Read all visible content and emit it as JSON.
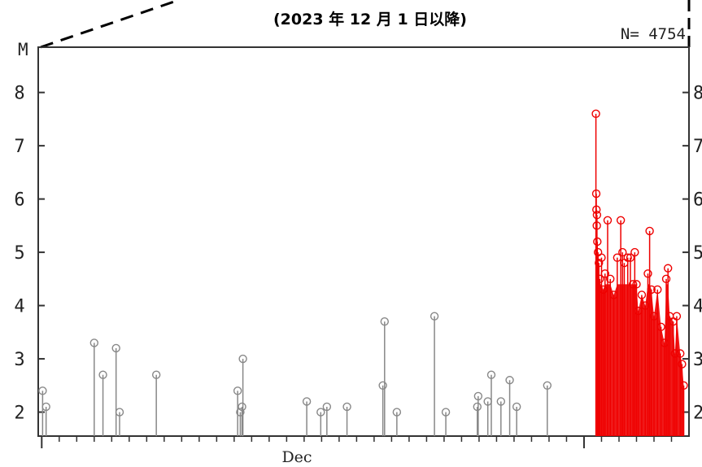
{
  "chart_data": {
    "type": "scatter",
    "title": "(2023 年 12 月 1 日以降)",
    "ylabel": "M",
    "count_label": "N= 4754",
    "ylim": [
      1.55,
      8.85
    ],
    "yticks": [
      "2",
      "3",
      "4",
      "5",
      "6",
      "7",
      "8"
    ],
    "month_label": "Dec",
    "x_unit": "days since 2023-12-01",
    "xlim": [
      -0.2,
      37
    ],
    "colors": {
      "before": "#888888",
      "after": "#ee0000"
    },
    "series": [
      {
        "points": [
          {
            "x": 0.05,
            "y": 2.4
          },
          {
            "x": 0.25,
            "y": 2.1
          },
          {
            "x": 3.0,
            "y": 3.3
          },
          {
            "x": 3.5,
            "y": 2.7
          },
          {
            "x": 4.25,
            "y": 3.2
          },
          {
            "x": 4.45,
            "y": 2.0
          },
          {
            "x": 6.55,
            "y": 2.7
          },
          {
            "x": 11.2,
            "y": 2.4
          },
          {
            "x": 11.35,
            "y": 2.0
          },
          {
            "x": 11.45,
            "y": 2.1
          },
          {
            "x": 11.5,
            "y": 3.0
          },
          {
            "x": 15.15,
            "y": 2.2
          },
          {
            "x": 15.95,
            "y": 2.0
          },
          {
            "x": 16.3,
            "y": 2.1
          },
          {
            "x": 17.45,
            "y": 2.1
          },
          {
            "x": 19.5,
            "y": 2.5
          },
          {
            "x": 19.6,
            "y": 3.7
          },
          {
            "x": 20.3,
            "y": 2.0
          },
          {
            "x": 22.45,
            "y": 3.8
          },
          {
            "x": 23.1,
            "y": 2.0
          },
          {
            "x": 24.9,
            "y": 2.1
          },
          {
            "x": 24.95,
            "y": 2.3
          },
          {
            "x": 25.5,
            "y": 2.2
          },
          {
            "x": 25.7,
            "y": 2.7
          },
          {
            "x": 26.25,
            "y": 2.2
          },
          {
            "x": 26.75,
            "y": 2.6
          },
          {
            "x": 27.15,
            "y": 2.1
          },
          {
            "x": 28.9,
            "y": 2.5
          }
        ]
      },
      {
        "points": [
          {
            "x": 31.68,
            "y": 7.6
          },
          {
            "x": 31.7,
            "y": 6.1
          },
          {
            "x": 31.71,
            "y": 5.8
          },
          {
            "x": 31.73,
            "y": 5.5
          },
          {
            "x": 31.74,
            "y": 5.7
          },
          {
            "x": 31.76,
            "y": 5.2
          },
          {
            "x": 31.8,
            "y": 5.0
          },
          {
            "x": 31.85,
            "y": 4.8
          },
          {
            "x": 31.9,
            "y": 4.5
          },
          {
            "x": 32.0,
            "y": 4.9
          },
          {
            "x": 32.1,
            "y": 4.3
          },
          {
            "x": 32.2,
            "y": 4.6
          },
          {
            "x": 32.35,
            "y": 5.6
          },
          {
            "x": 32.5,
            "y": 4.5
          },
          {
            "x": 32.7,
            "y": 4.2
          },
          {
            "x": 32.9,
            "y": 4.9
          },
          {
            "x": 33.1,
            "y": 5.6
          },
          {
            "x": 33.2,
            "y": 5.0
          },
          {
            "x": 33.3,
            "y": 4.8
          },
          {
            "x": 33.5,
            "y": 4.9
          },
          {
            "x": 33.65,
            "y": 4.9
          },
          {
            "x": 33.8,
            "y": 4.4
          },
          {
            "x": 33.9,
            "y": 5.0
          },
          {
            "x": 34.0,
            "y": 4.4
          },
          {
            "x": 34.1,
            "y": 3.9
          },
          {
            "x": 34.3,
            "y": 4.2
          },
          {
            "x": 34.5,
            "y": 4.0
          },
          {
            "x": 34.65,
            "y": 4.6
          },
          {
            "x": 34.75,
            "y": 5.4
          },
          {
            "x": 34.85,
            "y": 4.3
          },
          {
            "x": 35.0,
            "y": 3.8
          },
          {
            "x": 35.2,
            "y": 4.3
          },
          {
            "x": 35.4,
            "y": 3.6
          },
          {
            "x": 35.6,
            "y": 3.3
          },
          {
            "x": 35.7,
            "y": 4.5
          },
          {
            "x": 35.8,
            "y": 4.7
          },
          {
            "x": 35.9,
            "y": 3.8
          },
          {
            "x": 36.1,
            "y": 3.7
          },
          {
            "x": 36.2,
            "y": 3.1
          },
          {
            "x": 36.3,
            "y": 3.8
          },
          {
            "x": 36.5,
            "y": 3.1
          },
          {
            "x": 36.6,
            "y": 2.9
          },
          {
            "x": 36.7,
            "y": 2.5
          }
        ]
      }
    ]
  }
}
